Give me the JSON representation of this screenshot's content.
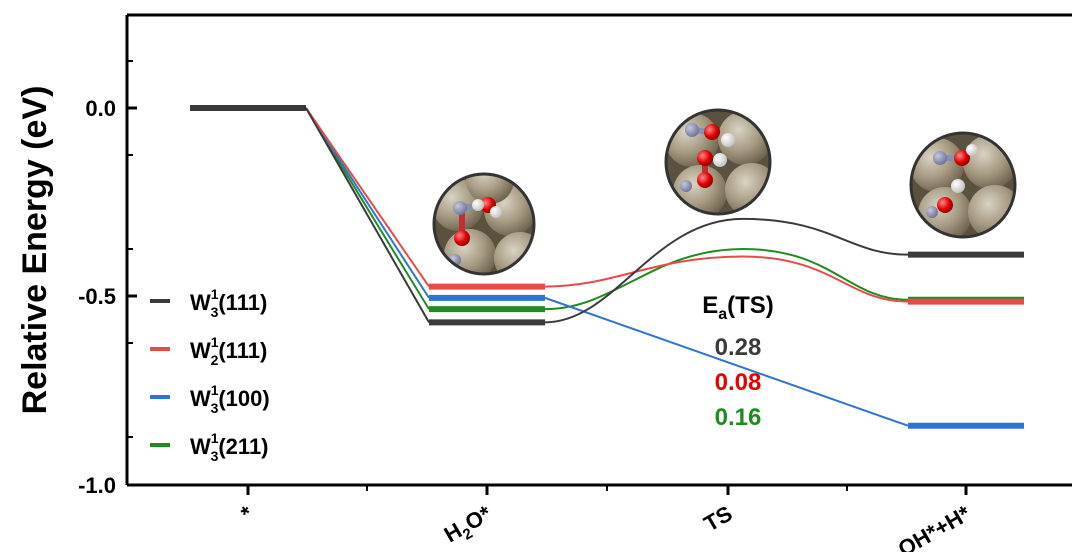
{
  "chart_data": {
    "type": "line",
    "title": "",
    "xlabel": "",
    "ylabel": "Relative Energy (eV)",
    "ylim": [
      -1.0,
      0.25
    ],
    "yticks": [
      "0.0",
      "-0.5",
      "-1.0"
    ],
    "categories": [
      "*",
      "H2O*",
      "TS",
      "OH*+H*"
    ],
    "category_labels": [
      {
        "main": "*",
        "sub": "",
        "rest": ""
      },
      {
        "main": "H",
        "sub": "2",
        "rest": "O*"
      },
      {
        "main": "TS",
        "sub": "",
        "rest": ""
      },
      {
        "main": "OH*+H*",
        "sub": "",
        "rest": ""
      }
    ],
    "legend_position": "left",
    "series": [
      {
        "name": "W₃¹(111)",
        "leg_base": "W",
        "leg_sub": "3",
        "leg_sup": "1",
        "leg_rest": "(111)",
        "color": "#3a3a3a",
        "star": 0.0,
        "h2o": -0.57,
        "ts": -0.295,
        "final": -0.39
      },
      {
        "name": "W₂¹(111)",
        "leg_base": "W",
        "leg_sub": "2",
        "leg_sup": "1",
        "leg_rest": "(111)",
        "color": "#e84a4a",
        "star": 0.0,
        "h2o": -0.475,
        "ts": -0.395,
        "final": -0.515
      },
      {
        "name": "W₃¹(100)",
        "leg_base": "W",
        "leg_sub": "3",
        "leg_sup": "1",
        "leg_rest": "(100)",
        "color": "#2e74d2",
        "star": 0.0,
        "h2o": -0.505,
        "ts": null,
        "final": -0.845
      },
      {
        "name": "W₃¹(211)",
        "leg_base": "W",
        "leg_sub": "3",
        "leg_sup": "1",
        "leg_rest": "(211)",
        "color": "#1e8c1e",
        "star": 0.0,
        "h2o": -0.535,
        "ts": -0.375,
        "final": -0.51
      }
    ],
    "ea_header": {
      "base": "E",
      "sub": "a",
      "rest": "(TS)"
    },
    "ea_values": [
      {
        "value": "0.28",
        "color": "#3a3a3a"
      },
      {
        "value": "0.08",
        "color": "#e80000"
      },
      {
        "value": "0.16",
        "color": "#1e8c1e"
      }
    ]
  }
}
